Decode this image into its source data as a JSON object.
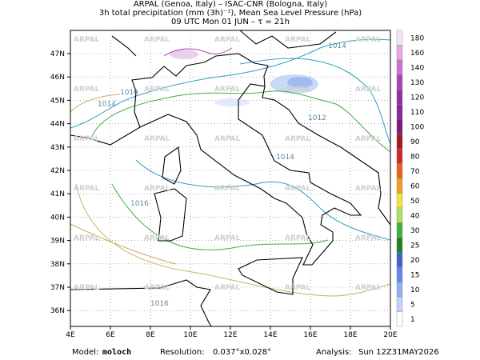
{
  "header": {
    "lines": [
      "ARPAL (Genoa, Italy)  –  ISAC-CNR (Bologna, Italy)",
      "3h total precipitation (mm (3h)⁻¹), Mean Sea Level Pressure (hPa)",
      "09 UTC Mon 01 JUN   –   τ = 21h"
    ]
  },
  "map": {
    "lat_labels": [
      "47N",
      "46N",
      "45N",
      "44N",
      "43N",
      "42N",
      "41N",
      "40N",
      "39N",
      "38N",
      "37N",
      "36N"
    ],
    "lon_labels": [
      "4E",
      "6E",
      "8E",
      "10E",
      "12E",
      "14E",
      "16E",
      "18E",
      "20E"
    ],
    "watermark": "ARPAL",
    "isobar_labels": [
      "1014",
      "1012",
      "1014",
      "1016",
      "1014",
      "1016",
      "1016"
    ]
  },
  "colorbar": {
    "labels": [
      "180",
      "160",
      "140",
      "130",
      "120",
      "110",
      "100",
      "90",
      "80",
      "70",
      "60",
      "50",
      "40",
      "30",
      "25",
      "20",
      "15",
      "10",
      "5",
      "1"
    ],
    "colors": [
      "#f4e6f4",
      "#e6a8e6",
      "#d070d0",
      "#b040b8",
      "#9030a8",
      "#8828a0",
      "#801880",
      "#a01820",
      "#d02828",
      "#e86020",
      "#f0a020",
      "#f0e040",
      "#b0e060",
      "#40b040",
      "#208020",
      "#4060d0",
      "#6088e8",
      "#90b0f0",
      "#c0d4f8",
      "#ffffff"
    ]
  },
  "footer": {
    "model_label": "Model:",
    "model": "moloch",
    "resolution_label": "Resolution:",
    "resolution": "0.037°x0.028°",
    "analysis_label": "Analysis:",
    "analysis": "Sun 12Z31MAY2026"
  }
}
